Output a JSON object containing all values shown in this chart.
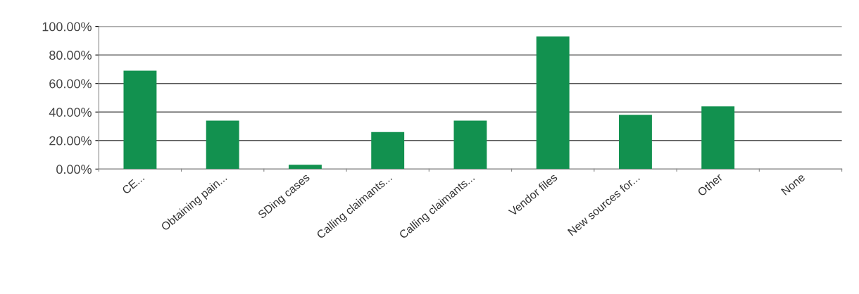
{
  "chart_data": {
    "type": "bar",
    "categories": [
      "CE...",
      "Obtaining pain...",
      "SDing cases",
      "Calling claimants...",
      "Calling claimants...",
      "Vendor files",
      "New sources for...",
      "Other",
      "None"
    ],
    "values": [
      69,
      34,
      3,
      26,
      34,
      93,
      38,
      44,
      0
    ],
    "color": "#12914f",
    "ylim": [
      0,
      100
    ],
    "yticks": [
      {
        "value": 0,
        "label": "0.00%"
      },
      {
        "value": 20,
        "label": "20.00%"
      },
      {
        "value": 40,
        "label": "40.00%"
      },
      {
        "value": 60,
        "label": "60.00%"
      },
      {
        "value": 80,
        "label": "80.00%"
      },
      {
        "value": 100,
        "label": "100.00%"
      }
    ],
    "grid": "y",
    "legend": false
  }
}
